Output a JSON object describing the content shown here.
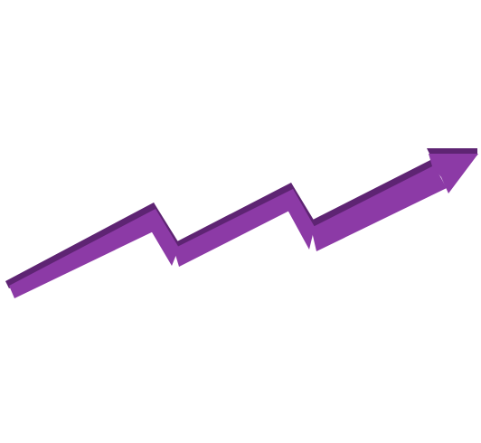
{
  "graphic": {
    "icon": "zigzag-up-arrow-icon",
    "colors": {
      "face": "#8c3aa6",
      "edge": "#5e2473",
      "background": "#ffffff"
    }
  }
}
